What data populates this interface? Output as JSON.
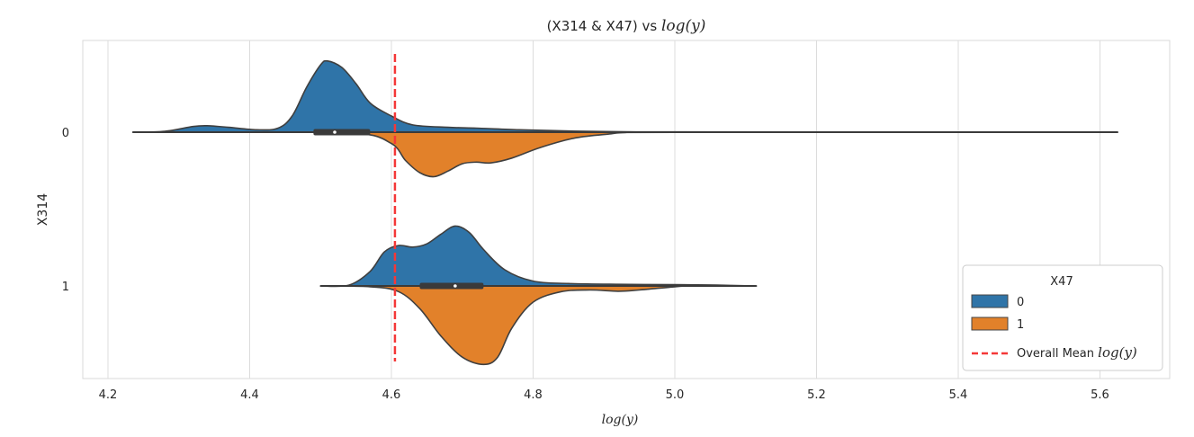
{
  "chart_data": {
    "type": "violin",
    "orientation": "horizontal",
    "split": true,
    "title_prefix": "(X314 & X47) vs ",
    "title_math": "log(y)",
    "xlabel": "log(y)",
    "ylabel": "X314",
    "xlim": [
      4.16,
      5.69
    ],
    "xticks": [
      "4.2",
      "4.4",
      "4.6",
      "4.8",
      "5.0",
      "5.2",
      "5.4",
      "5.6"
    ],
    "categories": [
      "0",
      "1"
    ],
    "grid": true,
    "hue": {
      "title": "X47",
      "levels": [
        {
          "name": "0",
          "color": "#2f74a8"
        },
        {
          "name": "1",
          "color": "#e2812a"
        }
      ]
    },
    "overall_mean": {
      "value": 4.605,
      "label_prefix": "Overall Mean ",
      "label_math": "log(y)",
      "color": "#f43838"
    },
    "violins": [
      {
        "category": "0",
        "hue": "0",
        "side": "top",
        "range": [
          4.235,
          5.625
        ],
        "profile": [
          [
            4.235,
            0.0
          ],
          [
            4.28,
            0.01
          ],
          [
            4.32,
            0.07
          ],
          [
            4.34,
            0.08
          ],
          [
            4.37,
            0.06
          ],
          [
            4.41,
            0.03
          ],
          [
            4.44,
            0.05
          ],
          [
            4.46,
            0.2
          ],
          [
            4.48,
            0.55
          ],
          [
            4.5,
            0.83
          ],
          [
            4.51,
            0.88
          ],
          [
            4.53,
            0.8
          ],
          [
            4.55,
            0.6
          ],
          [
            4.57,
            0.36
          ],
          [
            4.6,
            0.2
          ],
          [
            4.63,
            0.09
          ],
          [
            4.68,
            0.06
          ],
          [
            4.72,
            0.05
          ],
          [
            4.78,
            0.03
          ],
          [
            4.85,
            0.015
          ],
          [
            4.93,
            0.005
          ],
          [
            5.0,
            0.003
          ],
          [
            5.3,
            0.002
          ],
          [
            5.625,
            0.0
          ]
        ],
        "box": {
          "q1": 4.49,
          "median": 4.52,
          "q3": 4.57
        }
      },
      {
        "category": "0",
        "hue": "1",
        "side": "bottom",
        "range": [
          4.235,
          5.625
        ],
        "profile": [
          [
            4.235,
            0.0
          ],
          [
            4.4,
            0.0
          ],
          [
            4.55,
            0.01
          ],
          [
            4.6,
            0.14
          ],
          [
            4.62,
            0.35
          ],
          [
            4.64,
            0.5
          ],
          [
            4.66,
            0.55
          ],
          [
            4.68,
            0.48
          ],
          [
            4.7,
            0.39
          ],
          [
            4.72,
            0.37
          ],
          [
            4.74,
            0.38
          ],
          [
            4.77,
            0.32
          ],
          [
            4.81,
            0.19
          ],
          [
            4.86,
            0.07
          ],
          [
            4.91,
            0.02
          ],
          [
            4.93,
            0.005
          ],
          [
            5.0,
            0.002
          ],
          [
            5.625,
            0.0
          ]
        ],
        "box": null
      },
      {
        "category": "1",
        "hue": "0",
        "side": "top",
        "range": [
          4.5,
          5.115
        ],
        "profile": [
          [
            4.5,
            0.0
          ],
          [
            4.54,
            0.01
          ],
          [
            4.57,
            0.18
          ],
          [
            4.59,
            0.42
          ],
          [
            4.61,
            0.5
          ],
          [
            4.63,
            0.48
          ],
          [
            4.65,
            0.52
          ],
          [
            4.67,
            0.64
          ],
          [
            4.69,
            0.74
          ],
          [
            4.71,
            0.66
          ],
          [
            4.73,
            0.45
          ],
          [
            4.76,
            0.2
          ],
          [
            4.8,
            0.06
          ],
          [
            4.85,
            0.03
          ],
          [
            4.92,
            0.02
          ],
          [
            5.0,
            0.015
          ],
          [
            5.06,
            0.01
          ],
          [
            5.115,
            0.0
          ]
        ],
        "box": {
          "q1": 4.64,
          "median": 4.69,
          "q3": 4.73
        }
      },
      {
        "category": "1",
        "hue": "1",
        "side": "bottom",
        "range": [
          4.5,
          5.115
        ],
        "profile": [
          [
            4.5,
            0.0
          ],
          [
            4.57,
            0.01
          ],
          [
            4.61,
            0.07
          ],
          [
            4.64,
            0.28
          ],
          [
            4.67,
            0.62
          ],
          [
            4.7,
            0.88
          ],
          [
            4.73,
            0.97
          ],
          [
            4.75,
            0.88
          ],
          [
            4.77,
            0.52
          ],
          [
            4.8,
            0.2
          ],
          [
            4.84,
            0.07
          ],
          [
            4.88,
            0.05
          ],
          [
            4.92,
            0.065
          ],
          [
            4.95,
            0.05
          ],
          [
            5.0,
            0.01
          ],
          [
            5.02,
            0.0
          ]
        ],
        "box": null
      }
    ]
  }
}
